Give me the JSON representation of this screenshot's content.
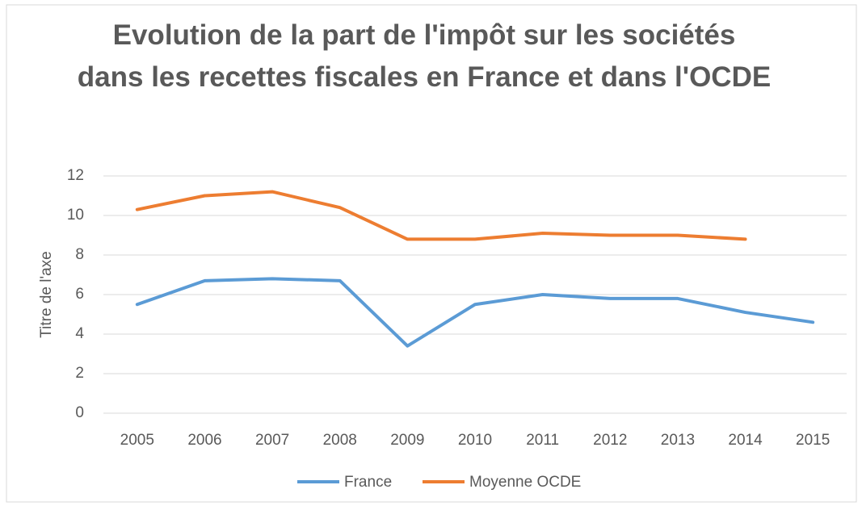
{
  "chart_data": {
    "type": "line",
    "title": "Evolution de la part de l'impôt sur les sociétés dans les recettes fiscales en France et dans l'OCDE",
    "y_label": "Titre de l'axe",
    "categories": [
      "2005",
      "2006",
      "2007",
      "2008",
      "2009",
      "2010",
      "2011",
      "2012",
      "2013",
      "2014",
      "2015"
    ],
    "series": [
      {
        "name": "France",
        "color": "#5b9bd5",
        "values": [
          5.5,
          6.7,
          6.8,
          6.7,
          3.4,
          5.5,
          6.0,
          5.8,
          5.8,
          5.1,
          4.6
        ]
      },
      {
        "name": "Moyenne OCDE",
        "color": "#ed7d31",
        "values": [
          10.3,
          11.0,
          11.2,
          10.4,
          8.8,
          8.8,
          9.1,
          9.0,
          9.0,
          8.8,
          null
        ]
      }
    ],
    "ylim": [
      0,
      12
    ],
    "yticks": [
      0,
      2,
      4,
      6,
      8,
      10,
      12
    ],
    "grid": true,
    "legend": "bottom"
  }
}
